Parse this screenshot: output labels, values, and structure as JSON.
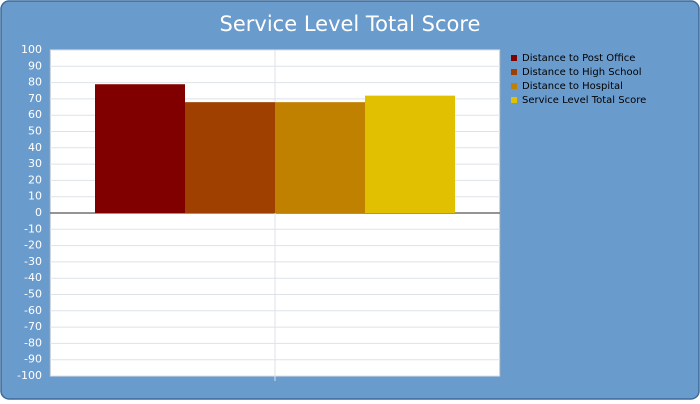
{
  "chart_data": {
    "type": "bar",
    "title": "Service Level Total Score",
    "categories": [
      null
    ],
    "series": [
      {
        "name": "Distance to Post Office",
        "color": "#800000",
        "values": [
          79
        ]
      },
      {
        "name": "Distance to High School",
        "color": "#a04000",
        "values": [
          68
        ]
      },
      {
        "name": "Distance to Hospital",
        "color": "#c08000",
        "values": [
          68
        ]
      },
      {
        "name": "Service Level Total Score",
        "color": "#e0c000",
        "values": [
          72
        ]
      }
    ],
    "ylim": [
      -100,
      100
    ],
    "yticks": [
      -100,
      -90,
      -80,
      -70,
      -60,
      -50,
      -40,
      -30,
      -20,
      -10,
      0,
      10,
      20,
      30,
      40,
      50,
      60,
      70,
      80,
      90,
      100
    ],
    "grid": true
  }
}
